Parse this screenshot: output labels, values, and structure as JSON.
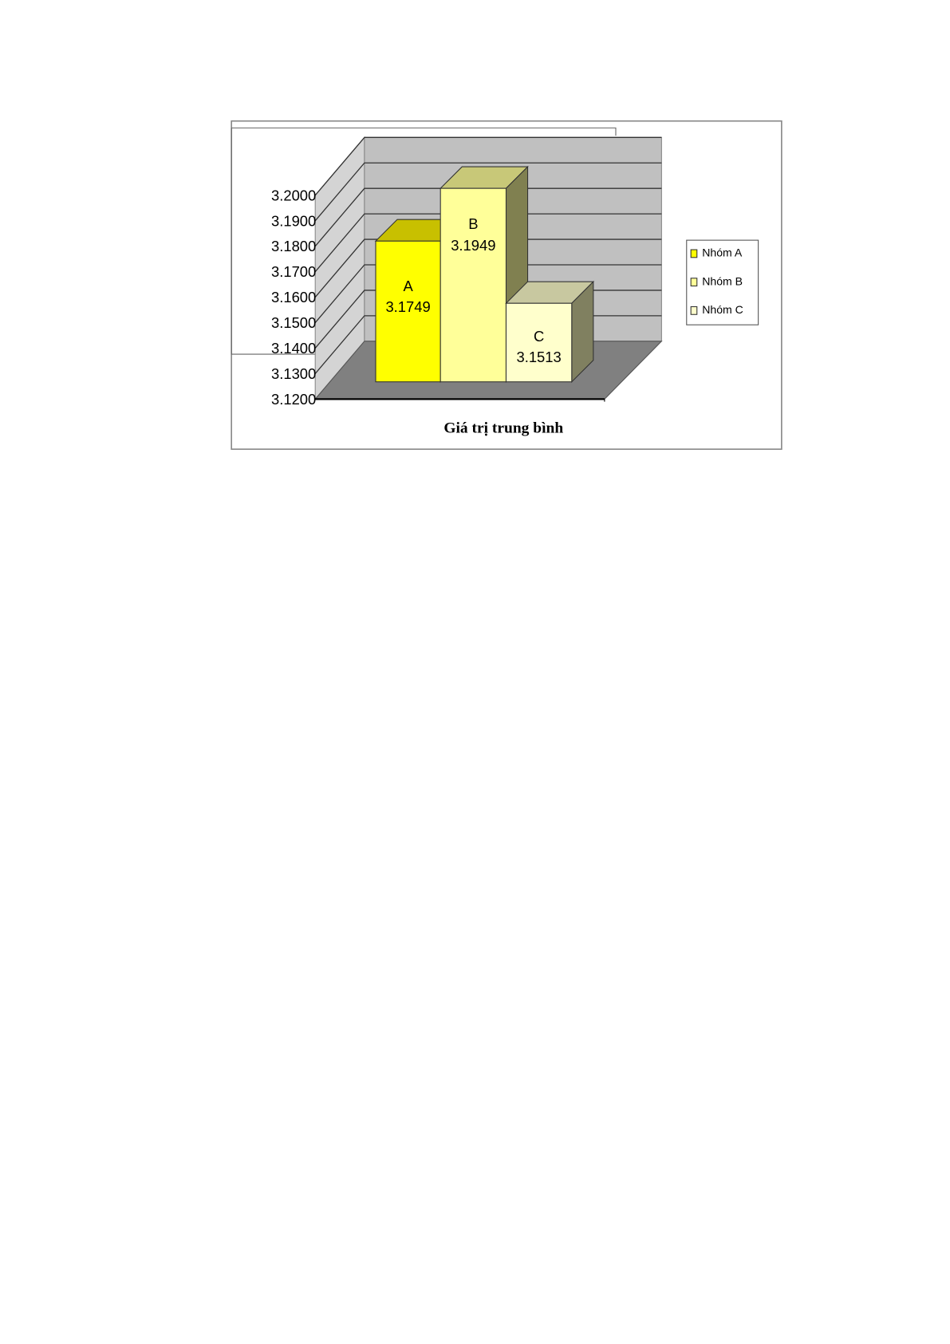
{
  "chart_data": {
    "type": "bar",
    "style": "3d-column",
    "categories": [
      "A",
      "B",
      "C"
    ],
    "values": [
      3.1749,
      3.1949,
      3.1513
    ],
    "data_labels": [
      "A\n3.1749",
      "B\n3.1949",
      "C\n3.1513"
    ],
    "xlabel": "Giá trị trung bình",
    "ylabel": "",
    "ylim": [
      3.12,
      3.2
    ],
    "yticks": [
      "3.2000",
      "3.1900",
      "3.1800",
      "3.1700",
      "3.1600",
      "3.1500",
      "3.1400",
      "3.1300",
      "3.1200"
    ],
    "grid": true,
    "legend": {
      "placement": "right",
      "entries": [
        "Nhóm A",
        "Nhóm B",
        "Nhóm C"
      ]
    },
    "colors": {
      "A": "#ffff00",
      "B": "#ffff99",
      "C": "#ffffcc",
      "walls": "#c0c0c0",
      "floor": "#808080"
    }
  }
}
